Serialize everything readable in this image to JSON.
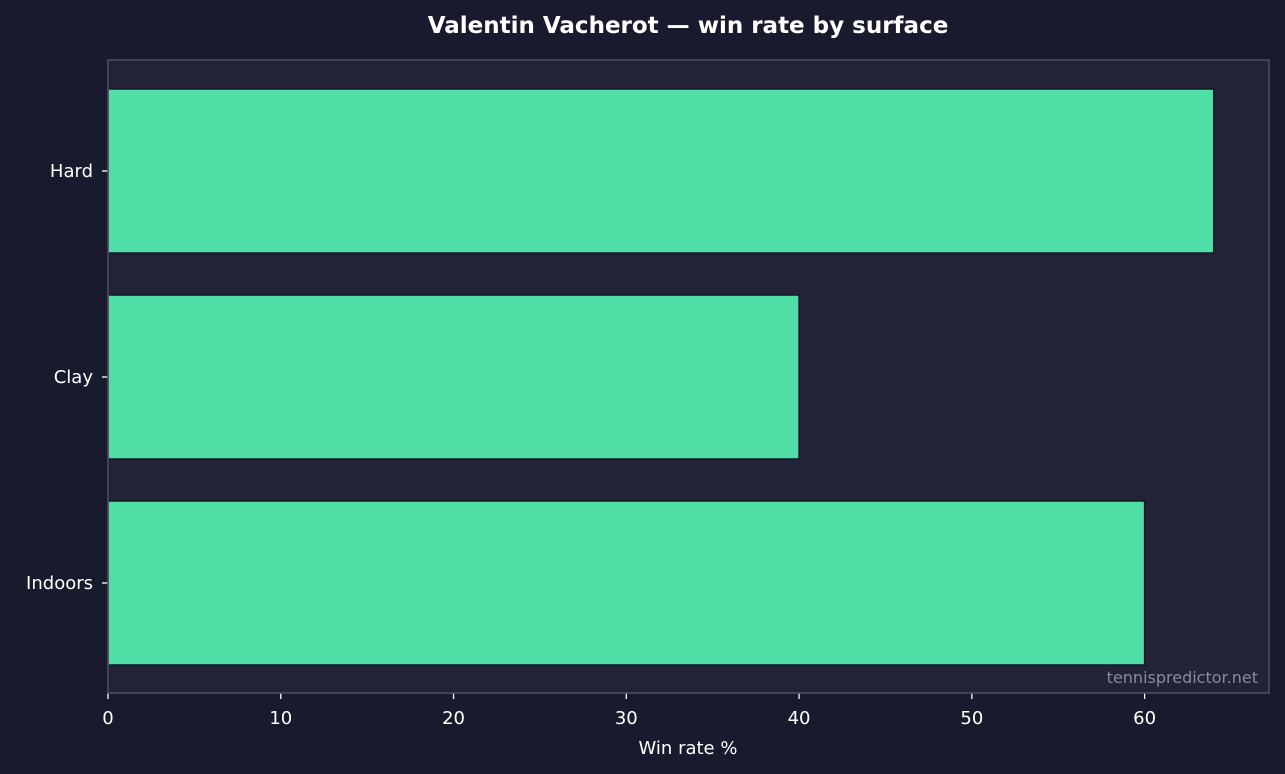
{
  "chart_data": {
    "type": "bar",
    "orientation": "horizontal",
    "title": "Valentin Vacherot — win rate by surface",
    "categories": [
      "Hard",
      "Clay",
      "Indoors"
    ],
    "values": [
      64,
      40,
      60
    ],
    "xlabel": "Win rate %",
    "ylabel": "",
    "xlim": [
      0,
      67.2
    ],
    "xticks": [
      0,
      10,
      20,
      30,
      40,
      50,
      60
    ],
    "xtick_labels": [
      "0",
      "10",
      "20",
      "30",
      "40",
      "50",
      "60"
    ],
    "grid": false,
    "legend": "none",
    "watermark": "tennispredictor.net"
  },
  "colors": {
    "background": "#1a1a2e",
    "plot_background": "#232338",
    "bar_fill": "#4fdfa7",
    "bar_edge": "#16162a",
    "axis_frame": "#505064",
    "text": "#ffffff",
    "watermark": "#8a8a9c"
  }
}
